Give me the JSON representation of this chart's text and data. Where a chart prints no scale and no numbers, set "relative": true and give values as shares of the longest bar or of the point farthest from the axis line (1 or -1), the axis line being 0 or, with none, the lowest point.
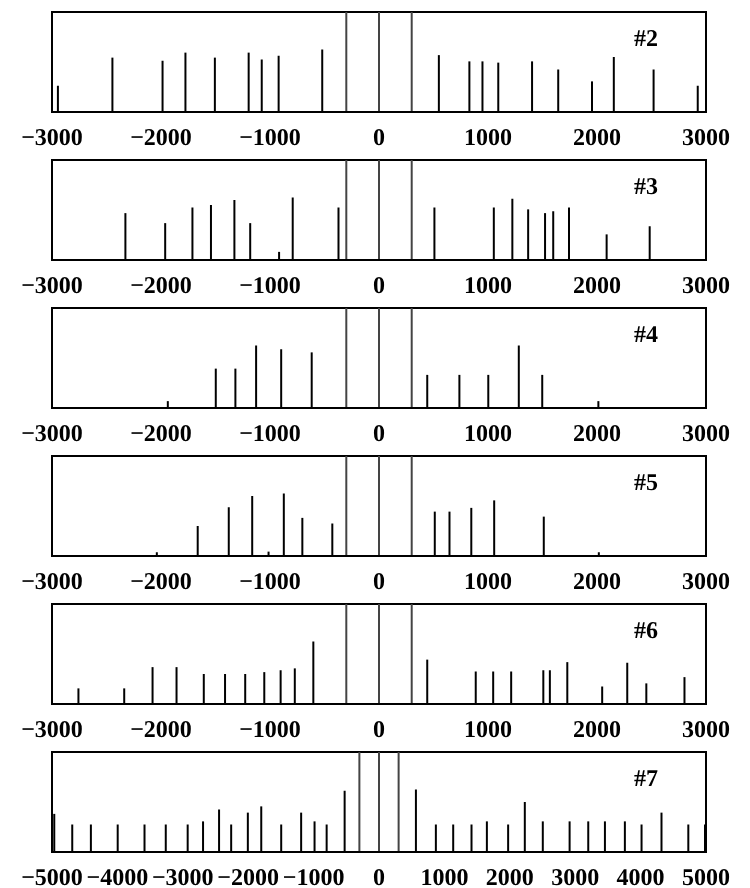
{
  "chart_data": [
    {
      "type": "bar",
      "relative": true,
      "color": "#000000",
      "tick_labels": "x",
      "annotations": [
        "#2"
      ],
      "xlim": [
        -3000,
        3000
      ],
      "xticks": [
        -3000,
        -2000,
        -1000,
        0,
        1000,
        2000,
        3000
      ],
      "ref_lines": [
        {
          "axis": "x",
          "value": -300
        },
        {
          "axis": "x",
          "value": 0
        },
        {
          "axis": "x",
          "value": 300
        }
      ],
      "x": [
        -2950,
        -2450,
        -1990,
        -1780,
        -1510,
        -1200,
        -1080,
        -925,
        -525,
        545,
        825,
        945,
        1090,
        1400,
        1640,
        1950,
        2150,
        2515,
        2920
      ],
      "values": [
        0.42,
        0.87,
        0.82,
        0.95,
        0.87,
        0.95,
        0.84,
        0.9,
        1,
        0.91,
        0.81,
        0.81,
        0.79,
        0.81,
        0.68,
        0.49,
        0.88,
        0.68,
        0.42
      ]
    },
    {
      "type": "bar",
      "relative": true,
      "color": "#000000",
      "tick_labels": "x",
      "annotations": [
        "#3"
      ],
      "xlim": [
        -3000,
        3000
      ],
      "xticks": [
        -3000,
        -2000,
        -1000,
        0,
        1000,
        2000,
        3000
      ],
      "ref_lines": [
        {
          "axis": "x",
          "value": -300
        },
        {
          "axis": "x",
          "value": 0
        },
        {
          "axis": "x",
          "value": 300
        }
      ],
      "x": [
        -2335,
        -1970,
        -1720,
        -1550,
        -1335,
        -1190,
        -925,
        -800,
        -380,
        500,
        1045,
        1215,
        1360,
        1515,
        1590,
        1735,
        2080,
        2475
      ],
      "values": [
        0.75,
        0.59,
        0.84,
        0.88,
        0.96,
        0.59,
        0.13,
        1,
        0.84,
        0.84,
        0.84,
        0.98,
        0.81,
        0.75,
        0.78,
        0.84,
        0.41,
        0.54
      ]
    },
    {
      "type": "bar",
      "relative": true,
      "color": "#000000",
      "tick_labels": "x",
      "annotations": [
        "#4"
      ],
      "xlim": [
        -3000,
        3000
      ],
      "xticks": [
        -3000,
        -2000,
        -1000,
        0,
        1000,
        2000,
        3000
      ],
      "ref_lines": [
        {
          "axis": "x",
          "value": -300
        },
        {
          "axis": "x",
          "value": 0
        },
        {
          "axis": "x",
          "value": 300
        }
      ],
      "x": [
        -1930,
        -1490,
        -1310,
        -1120,
        -890,
        -610,
        450,
        745,
        1010,
        1290,
        1505,
        2020
      ],
      "values": [
        0.11,
        0.63,
        0.63,
        1,
        0.94,
        0.89,
        0.53,
        0.53,
        0.53,
        1,
        0.53,
        0.11
      ]
    },
    {
      "type": "bar",
      "relative": true,
      "color": "#000000",
      "tick_labels": "x",
      "annotations": [
        "#5"
      ],
      "xlim": [
        -3000,
        3000
      ],
      "xticks": [
        -3000,
        -2000,
        -1000,
        0,
        1000,
        2000,
        3000
      ],
      "ref_lines": [
        {
          "axis": "x",
          "value": -300
        },
        {
          "axis": "x",
          "value": 0
        },
        {
          "axis": "x",
          "value": 300
        }
      ],
      "x": [
        -2035,
        -1660,
        -1375,
        -1160,
        -1010,
        -870,
        -700,
        -425,
        515,
        650,
        850,
        1060,
        1515,
        2020
      ],
      "values": [
        0.06,
        0.48,
        0.78,
        0.96,
        0.07,
        1,
        0.61,
        0.52,
        0.71,
        0.71,
        0.77,
        0.89,
        0.63,
        0.06
      ]
    },
    {
      "type": "bar",
      "relative": true,
      "color": "#000000",
      "tick_labels": "x",
      "annotations": [
        "#6"
      ],
      "xlim": [
        -3000,
        3000
      ],
      "xticks": [
        -3000,
        -2000,
        -1000,
        0,
        1000,
        2000,
        3000
      ],
      "ref_lines": [
        {
          "axis": "x",
          "value": -300
        },
        {
          "axis": "x",
          "value": 0
        },
        {
          "axis": "x",
          "value": 300
        }
      ],
      "x": [
        -2755,
        -2335,
        -2075,
        -1855,
        -1605,
        -1410,
        -1225,
        -1050,
        -900,
        -770,
        -600,
        445,
        890,
        1050,
        1215,
        1510,
        1570,
        1730,
        2050,
        2280,
        2455,
        2805
      ],
      "values": [
        0.25,
        0.25,
        0.59,
        0.59,
        0.48,
        0.48,
        0.48,
        0.51,
        0.54,
        0.57,
        1,
        0.71,
        0.52,
        0.52,
        0.52,
        0.54,
        0.54,
        0.67,
        0.28,
        0.66,
        0.33,
        0.43
      ]
    },
    {
      "type": "bar",
      "relative": true,
      "color": "#000000",
      "tick_labels": "x",
      "annotations": [
        "#7"
      ],
      "xlim": [
        -5000,
        5000
      ],
      "xticks": [
        -5000,
        -4000,
        -3000,
        -2000,
        -1000,
        0,
        1000,
        2000,
        3000,
        4000,
        5000
      ],
      "ref_lines": [
        {
          "axis": "x",
          "value": -300
        },
        {
          "axis": "x",
          "value": 0
        },
        {
          "axis": "x",
          "value": 300
        }
      ],
      "x": [
        -4980,
        -4705,
        -4420,
        -4010,
        -3600,
        -3275,
        -2940,
        -2705,
        -2460,
        -2275,
        -2020,
        -1815,
        -1510,
        -1205,
        -1000,
        -815,
        -540,
        550,
        855,
        1120,
        1400,
        1635,
        1960,
        2215,
        2490,
        2900,
        3185,
        3440,
        3745,
        4000,
        4305,
        4715,
        4970
      ],
      "values": [
        0.61,
        0.44,
        0.44,
        0.44,
        0.44,
        0.44,
        0.44,
        0.49,
        0.68,
        0.44,
        0.63,
        0.73,
        0.44,
        0.63,
        0.49,
        0.44,
        0.98,
        1,
        0.44,
        0.44,
        0.44,
        0.49,
        0.44,
        0.8,
        0.49,
        0.49,
        0.49,
        0.49,
        0.49,
        0.44,
        0.63,
        0.44,
        0.44
      ]
    }
  ]
}
